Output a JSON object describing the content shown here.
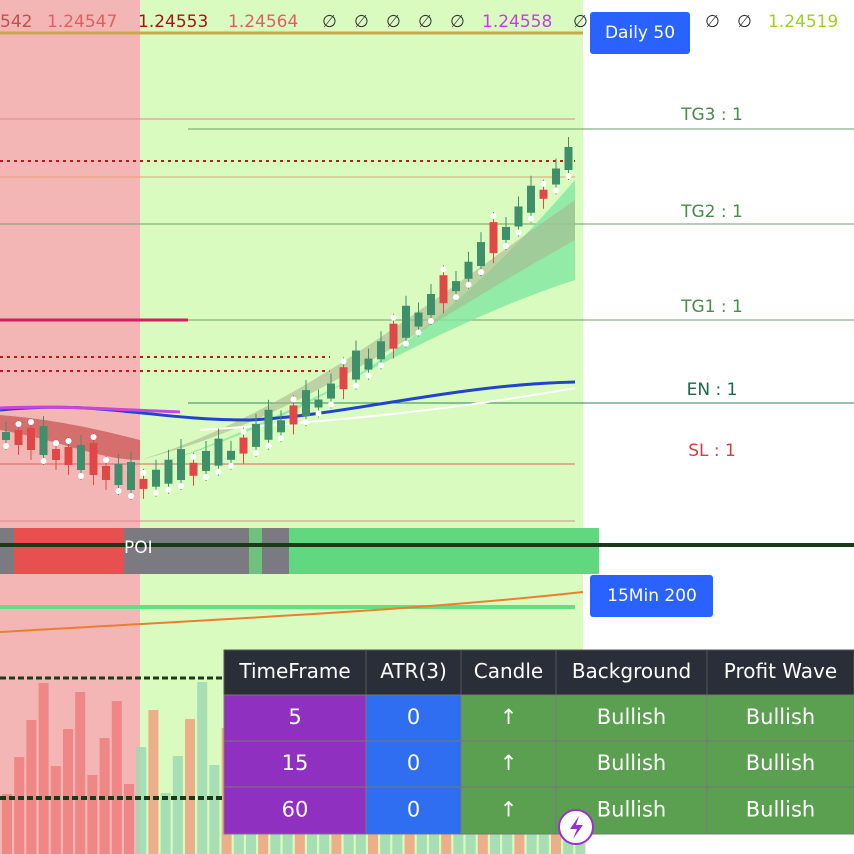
{
  "top_bar": {
    "items": [
      "542",
      "1.24547",
      "1.24553",
      "1.24564",
      "∅",
      "∅",
      "∅",
      "∅",
      "∅",
      "1.24558",
      "∅",
      "∅",
      "∅",
      "1.24519"
    ]
  },
  "labels": {
    "daily": "Daily 50",
    "tg3": "TG3 : 1",
    "tg2": "TG2 : 1",
    "tg1": "TG1 : 1",
    "en": "EN : 1",
    "sl": "SL : 1",
    "poi": "POI",
    "min15": "15Min 200"
  },
  "table": {
    "header": [
      "TimeFrame",
      "ATR(3)",
      "Candle",
      "Background",
      "Profit Wave"
    ],
    "rows": [
      [
        "5",
        "0",
        "↑",
        "Bullish",
        "Bullish"
      ],
      [
        "15",
        "0",
        "↑",
        "Bullish",
        "Bullish"
      ],
      [
        "60",
        "0",
        "↑",
        "Bullish",
        "Bullish"
      ]
    ]
  }
}
